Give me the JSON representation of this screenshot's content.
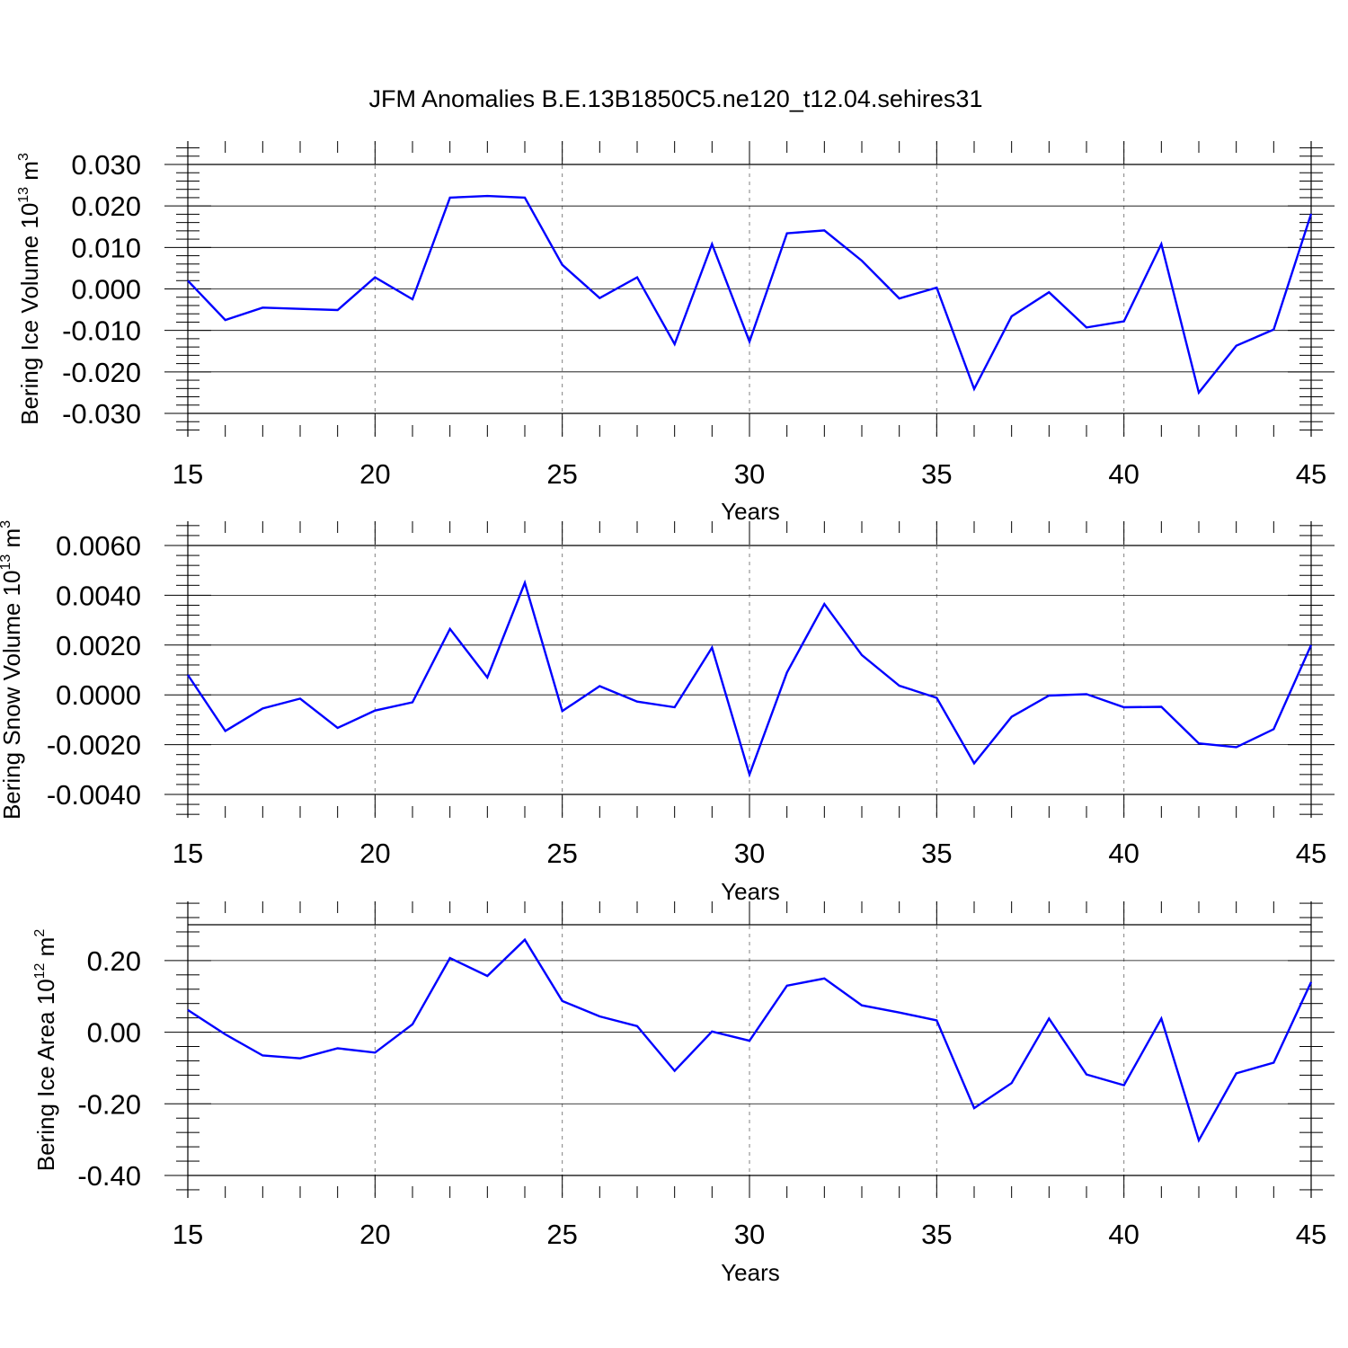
{
  "title": "JFM Anomalies B.E.13B1850C5.ne120_t12.04.sehires31",
  "colors": {
    "line": "#0000ff",
    "axis": "#000000",
    "grid": "#808080"
  },
  "chart_data": [
    {
      "type": "line",
      "xlabel": "Years",
      "ylabel": {
        "text": "Bering Ice Volume 10",
        "sup": "13",
        "unit": " m",
        "unit_sup": "3"
      },
      "xlim": [
        15,
        45
      ],
      "ylim": [
        -0.03,
        0.03
      ],
      "xticks": [
        "15",
        "20",
        "25",
        "30",
        "35",
        "40",
        "45"
      ],
      "yticks": [
        "0.030",
        "0.020",
        "0.010",
        "0.000",
        "-0.010",
        "-0.020",
        "-0.030"
      ],
      "ytick_values": [
        0.03,
        0.02,
        0.01,
        0.0,
        -0.01,
        -0.02,
        -0.03
      ],
      "grid": "vertical dashed at major x ticks",
      "x": [
        15,
        16,
        17,
        18,
        19,
        20,
        21,
        22,
        23,
        24,
        25,
        26,
        27,
        28,
        29,
        30,
        31,
        32,
        33,
        34,
        35,
        36,
        37,
        38,
        39,
        40,
        41,
        42,
        43,
        44,
        45
      ],
      "y": [
        0.002,
        -0.0075,
        -0.0045,
        -0.0048,
        -0.0051,
        0.0028,
        -0.0025,
        0.022,
        0.0224,
        0.022,
        0.0058,
        -0.0022,
        0.0028,
        -0.0133,
        0.0108,
        -0.0127,
        0.0134,
        0.0141,
        0.0068,
        -0.0023,
        0.0003,
        -0.0241,
        -0.0066,
        -0.0008,
        -0.0093,
        -0.0078,
        0.0108,
        -0.025,
        -0.0137,
        -0.0098,
        0.0181
      ]
    },
    {
      "type": "line",
      "xlabel": "Years",
      "ylabel": {
        "text": "Bering Snow Volume 10",
        "sup": "13",
        "unit": " m",
        "unit_sup": "3"
      },
      "xlim": [
        15,
        45
      ],
      "ylim": [
        -0.004,
        0.006
      ],
      "xticks": [
        "15",
        "20",
        "25",
        "30",
        "35",
        "40",
        "45"
      ],
      "yticks": [
        "0.0060",
        "0.0040",
        "0.0020",
        "0.0000",
        "-0.0020",
        "-0.0040"
      ],
      "ytick_values": [
        0.006,
        0.004,
        0.002,
        0.0,
        -0.002,
        -0.004
      ],
      "grid": "vertical dashed at major x ticks",
      "x": [
        15,
        16,
        17,
        18,
        19,
        20,
        21,
        22,
        23,
        24,
        25,
        26,
        27,
        28,
        29,
        30,
        31,
        32,
        33,
        34,
        35,
        36,
        37,
        38,
        39,
        40,
        41,
        42,
        43,
        44,
        45
      ],
      "y": [
        0.0008,
        -0.00145,
        -0.00055,
        -0.00015,
        -0.00133,
        -0.00063,
        -0.0003,
        0.00265,
        0.0007,
        0.0045,
        -0.00065,
        0.00035,
        -0.00027,
        -0.0005,
        0.0019,
        -0.0032,
        0.0009,
        0.00365,
        0.0016,
        0.00037,
        -0.00012,
        -0.00275,
        -0.00088,
        -3e-05,
        3e-05,
        -0.0005,
        -0.00048,
        -0.00195,
        -0.0021,
        -0.00138,
        0.002
      ]
    },
    {
      "type": "line",
      "xlabel": "Years",
      "ylabel": {
        "text": "Bering Ice Area 10",
        "sup": "12",
        "unit": " m",
        "unit_sup": "2"
      },
      "xlim": [
        15,
        45
      ],
      "ylim": [
        -0.4,
        0.3
      ],
      "xticks": [
        "15",
        "20",
        "25",
        "30",
        "35",
        "40",
        "45"
      ],
      "yticks": [
        "0.20",
        "0.00",
        "-0.20",
        "-0.40"
      ],
      "ytick_values": [
        0.2,
        0.0,
        -0.2,
        -0.4
      ],
      "grid": "vertical dashed at major x ticks",
      "x": [
        15,
        16,
        17,
        18,
        19,
        20,
        21,
        22,
        23,
        24,
        25,
        26,
        27,
        28,
        29,
        30,
        31,
        32,
        33,
        34,
        35,
        36,
        37,
        38,
        39,
        40,
        41,
        42,
        43,
        44,
        45
      ],
      "y": [
        0.062,
        -0.006,
        -0.065,
        -0.073,
        -0.045,
        -0.057,
        0.022,
        0.207,
        0.157,
        0.258,
        0.087,
        0.044,
        0.017,
        -0.108,
        0.002,
        -0.024,
        0.13,
        0.15,
        0.075,
        0.055,
        0.033,
        -0.212,
        -0.142,
        0.038,
        -0.118,
        -0.148,
        0.038,
        -0.302,
        -0.115,
        -0.085,
        0.14
      ]
    }
  ]
}
